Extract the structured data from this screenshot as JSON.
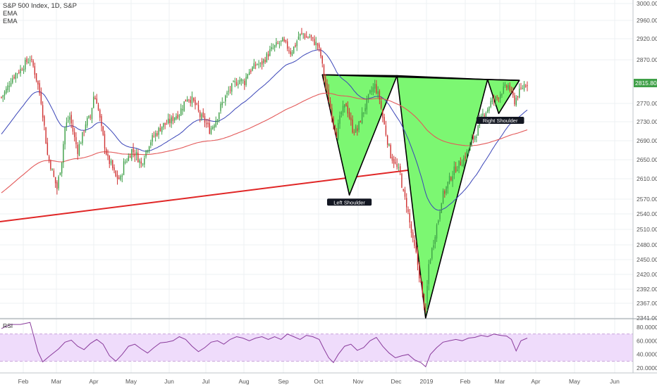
{
  "legend": {
    "title": "S&P 500 Index, 1D, S&P",
    "ind1": "EMA",
    "ind2": "EMA"
  },
  "colors": {
    "up": "#3fa048",
    "down": "#d03434",
    "ema_fast": "#3b46b8",
    "ema_slow": "#e35a5a",
    "trendline": "#e02626",
    "pattern_fill": "#7cf772",
    "rsi_line": "#8a3c9c",
    "rsi_band": "#efdcfb",
    "price_badge": "#3fa048"
  },
  "chart_data": [
    {
      "type": "candlestick",
      "title": "S&P 500 Index, 1D, S&P",
      "x_ticks": [
        "Feb",
        "Mar",
        "Apr",
        "May",
        "Jun",
        "Jul",
        "Aug",
        "Sep",
        "Oct",
        "Nov",
        "Dec",
        "2019",
        "Feb",
        "Mar",
        "Apr",
        "May",
        "Jun"
      ],
      "y_ticks": [
        "3000.00",
        "2960.00",
        "2920.00",
        "2870.00",
        "2770.00",
        "2730.00",
        "2690.00",
        "2650.00",
        "2610.00",
        "2570.00",
        "2540.00",
        "2510.00",
        "2480.00",
        "2450.00",
        "2420.00",
        "2392.00",
        "2367.00",
        "2341.00"
      ],
      "last_price": "2815.80",
      "y_range": [
        2341,
        3000
      ],
      "series": [
        {
          "type": "candlestick",
          "points": [
            [
              0,
              2784
            ],
            [
              3,
              2800
            ],
            [
              6,
              2823
            ],
            [
              9,
              2838
            ],
            [
              12,
              2847
            ],
            [
              15,
              2862
            ],
            [
              18,
              2873
            ],
            [
              20,
              2855
            ],
            [
              23,
              2811
            ],
            [
              25,
              2776
            ],
            [
              27,
              2719
            ],
            [
              29,
              2660
            ],
            [
              31,
              2638
            ],
            [
              33,
              2612
            ],
            [
              35,
              2591
            ],
            [
              38,
              2650
            ],
            [
              40,
              2718
            ],
            [
              43,
              2741
            ],
            [
              46,
              2695
            ],
            [
              48,
              2670
            ],
            [
              51,
              2700
            ],
            [
              53,
              2728
            ],
            [
              56,
              2740
            ],
            [
              58,
              2786
            ],
            [
              60,
              2776
            ],
            [
              63,
              2714
            ],
            [
              65,
              2680
            ],
            [
              67,
              2650
            ],
            [
              69,
              2640
            ],
            [
              72,
              2613
            ],
            [
              75,
              2609
            ],
            [
              77,
              2641
            ],
            [
              80,
              2656
            ],
            [
              82,
              2670
            ],
            [
              85,
              2660
            ],
            [
              88,
              2640
            ],
            [
              90,
              2661
            ],
            [
              93,
              2685
            ],
            [
              96,
              2700
            ],
            [
              99,
              2712
            ],
            [
              101,
              2722
            ],
            [
              104,
              2726
            ],
            [
              107,
              2733
            ],
            [
              109,
              2742
            ],
            [
              112,
              2749
            ],
            [
              115,
              2772
            ],
            [
              117,
              2784
            ],
            [
              120,
              2778
            ],
            [
              123,
              2760
            ],
            [
              125,
              2742
            ],
            [
              128,
              2731
            ],
            [
              131,
              2713
            ],
            [
              133,
              2722
            ],
            [
              136,
              2743
            ],
            [
              138,
              2763
            ],
            [
              141,
              2785
            ],
            [
              144,
              2802
            ],
            [
              147,
              2815
            ],
            [
              150,
              2823
            ],
            [
              153,
              2818
            ],
            [
              155,
              2840
            ],
            [
              158,
              2850
            ],
            [
              161,
              2861
            ],
            [
              163,
              2858
            ],
            [
              166,
              2873
            ],
            [
              169,
              2890
            ],
            [
              172,
              2901
            ],
            [
              174,
              2907
            ],
            [
              177,
              2914
            ],
            [
              180,
              2900
            ],
            [
              182,
              2888
            ],
            [
              185,
              2905
            ],
            [
              187,
              2925
            ],
            [
              190,
              2931
            ],
            [
              192,
              2922
            ],
            [
              194,
              2925
            ],
            [
              196,
              2915
            ],
            [
              199,
              2905
            ],
            [
              201,
              2879
            ],
            [
              203,
              2830
            ],
            [
              205,
              2795
            ],
            [
              207,
              2760
            ],
            [
              209,
              2730
            ],
            [
              211,
              2705
            ],
            [
              214,
              2750
            ],
            [
              217,
              2768
            ],
            [
              219,
              2740
            ],
            [
              221,
              2715
            ],
            [
              224,
              2712
            ],
            [
              226,
              2735
            ],
            [
              229,
              2764
            ],
            [
              232,
              2792
            ],
            [
              235,
              2810
            ],
            [
              238,
              2780
            ],
            [
              240,
              2739
            ],
            [
              243,
              2690
            ],
            [
              245,
              2660
            ],
            [
              247,
              2647
            ],
            [
              249,
              2632
            ],
            [
              251,
              2620
            ],
            [
              253,
              2580
            ],
            [
              255,
              2560
            ],
            [
              257,
              2522
            ],
            [
              259,
              2485
            ],
            [
              261,
              2460
            ],
            [
              263,
              2420
            ],
            [
              265,
              2380
            ],
            [
              267,
              2351
            ],
            [
              269,
              2440
            ],
            [
              271,
              2470
            ],
            [
              273,
              2504
            ],
            [
              275,
              2530
            ],
            [
              277,
              2571
            ],
            [
              279,
              2585
            ],
            [
              281,
              2600
            ],
            [
              283,
              2615
            ],
            [
              286,
              2633
            ],
            [
              288,
              2640
            ],
            [
              291,
              2652
            ],
            [
              294,
              2670
            ],
            [
              296,
              2690
            ],
            [
              299,
              2707
            ],
            [
              301,
              2725
            ],
            [
              303,
              2745
            ],
            [
              306,
              2758
            ],
            [
              308,
              2773
            ],
            [
              311,
              2780
            ],
            [
              313,
              2788
            ],
            [
              315,
              2798
            ],
            [
              317,
              2804
            ],
            [
              319,
              2810
            ],
            [
              321,
              2792
            ],
            [
              323,
              2775
            ],
            [
              325,
              2790
            ],
            [
              327,
              2800
            ],
            [
              329,
              2812
            ],
            [
              331,
              2815.8
            ]
          ]
        },
        {
          "name": "EMA",
          "type": "line",
          "values": "fast (~50)"
        },
        {
          "name": "EMA",
          "type": "line",
          "values": "slow (~200)"
        }
      ],
      "annotations": [
        "Left Shoulder",
        "Right Shoulder"
      ]
    },
    {
      "type": "line",
      "title": "RSI",
      "y_ticks": [
        "80.0000",
        "60.0000",
        "40.0000",
        "20.0000"
      ],
      "y_range": [
        20,
        80
      ],
      "bands": [
        30,
        70
      ],
      "x": [
        0,
        6,
        12,
        18,
        20,
        23,
        26,
        30,
        36,
        40,
        44,
        48,
        52,
        56,
        60,
        64,
        68,
        72,
        76,
        80,
        84,
        88,
        92,
        96,
        100,
        104,
        108,
        112,
        116,
        120,
        124,
        128,
        132,
        136,
        140,
        144,
        148,
        152,
        156,
        160,
        164,
        168,
        172,
        176,
        180,
        184,
        188,
        192,
        196,
        200,
        203,
        206,
        209,
        212,
        216,
        220,
        224,
        228,
        232,
        236,
        240,
        244,
        248,
        252,
        256,
        260,
        264,
        267,
        270,
        274,
        278,
        282,
        286,
        290,
        294,
        298,
        302,
        306,
        310,
        314,
        318,
        321,
        324,
        327,
        331
      ],
      "values": [
        78,
        84,
        84,
        87,
        70,
        44,
        29,
        37,
        48,
        58,
        61,
        52,
        47,
        56,
        62,
        55,
        38,
        30,
        40,
        52,
        55,
        48,
        42,
        50,
        57,
        58,
        60,
        66,
        62,
        52,
        44,
        50,
        58,
        60,
        55,
        62,
        66,
        64,
        60,
        64,
        66,
        62,
        66,
        62,
        70,
        66,
        62,
        68,
        66,
        62,
        48,
        35,
        28,
        40,
        52,
        55,
        46,
        50,
        60,
        65,
        52,
        42,
        35,
        38,
        40,
        32,
        28,
        22,
        40,
        50,
        58,
        60,
        62,
        60,
        64,
        65,
        68,
        66,
        70,
        68,
        67,
        62,
        45,
        60,
        64
      ]
    }
  ]
}
